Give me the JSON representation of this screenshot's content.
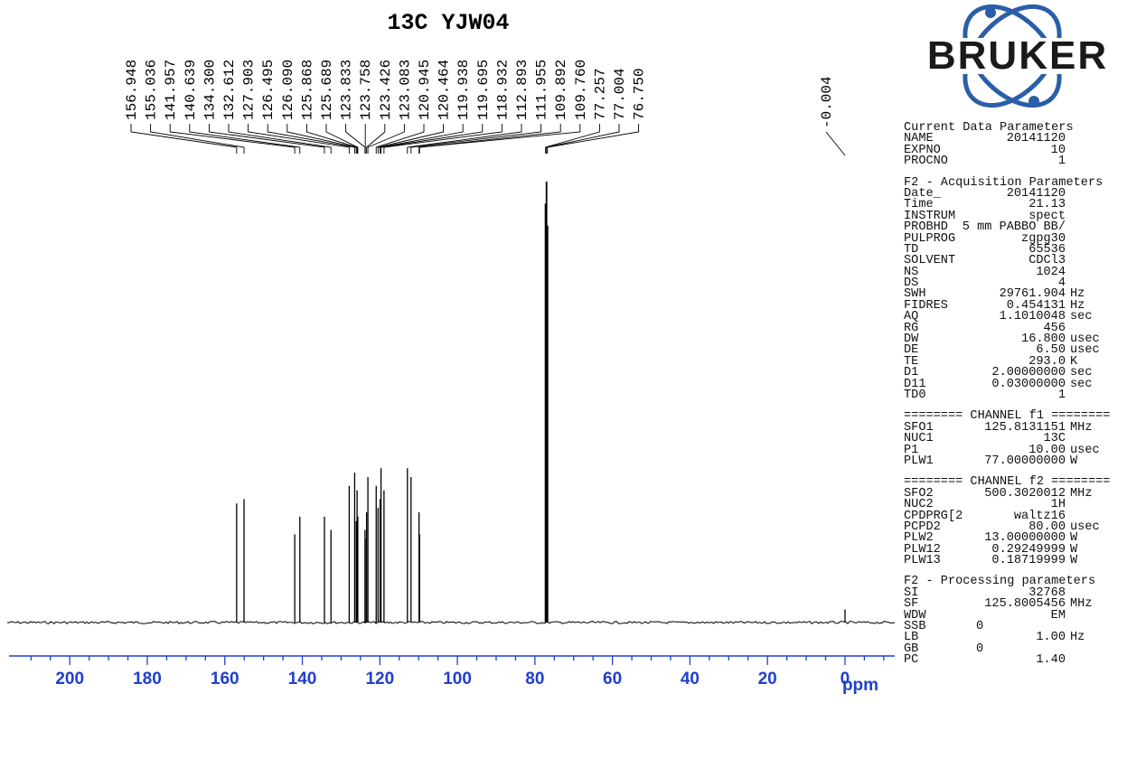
{
  "chart_data": {
    "type": "line",
    "title": "13C YJW04",
    "xlabel": "ppm",
    "xlim": [
      218,
      -14
    ],
    "xticks": [
      200,
      180,
      160,
      140,
      120,
      100,
      80,
      60,
      40,
      20,
      0
    ],
    "peak_labels": [
      "156.948",
      "155.036",
      "141.957",
      "140.639",
      "134.300",
      "132.612",
      "127.903",
      "126.495",
      "126.090",
      "125.868",
      "125.689",
      "123.833",
      "123.758",
      "123.426",
      "123.083",
      "120.945",
      "120.464",
      "119.938",
      "119.695",
      "118.932",
      "112.893",
      "111.955",
      "109.892",
      "109.760",
      "77.257",
      "77.004",
      "76.750",
      "-0.004"
    ],
    "series": [
      {
        "x": [
          156.948,
          155.036,
          141.957,
          140.639,
          134.3,
          132.612,
          127.903,
          126.495,
          126.09,
          125.868,
          125.689,
          123.833,
          123.758,
          123.426,
          123.083,
          120.945,
          120.464,
          119.938,
          119.695,
          118.932,
          112.893,
          111.955,
          109.892,
          109.76,
          77.257,
          77.004,
          76.75,
          -0.004
        ],
        "y": [
          0.27,
          0.28,
          0.2,
          0.24,
          0.24,
          0.21,
          0.31,
          0.34,
          0.23,
          0.3,
          0.24,
          0.21,
          0.19,
          0.25,
          0.33,
          0.31,
          0.26,
          0.28,
          0.35,
          0.3,
          0.35,
          0.33,
          0.25,
          0.2,
          0.95,
          1.0,
          0.9,
          0.03
        ]
      }
    ]
  },
  "logo": {
    "text": "BRUKER",
    "ring_color": "#2a5ea8",
    "dot_color": "#2a5ea8"
  },
  "axis_color": "#1f3fd0",
  "params": [
    {
      "header": "Current Data Parameters",
      "rows": [
        {
          "k": "NAME",
          "v": "20141120",
          "u": ""
        },
        {
          "k": "EXPNO",
          "v": "10",
          "u": ""
        },
        {
          "k": "PROCNO",
          "v": "1",
          "u": ""
        }
      ]
    },
    {
      "header": "F2 - Acquisition Parameters",
      "rows": [
        {
          "k": "Date_",
          "v": "20141120",
          "u": ""
        },
        {
          "k": "Time",
          "v": "21.13",
          "u": ""
        },
        {
          "k": "INSTRUM",
          "v": "spect",
          "u": ""
        },
        {
          "k": "PROBHD",
          "v": "5 mm PABBO BB/",
          "u": ""
        },
        {
          "k": "PULPROG",
          "v": "zgpg30",
          "u": ""
        },
        {
          "k": "TD",
          "v": "65536",
          "u": ""
        },
        {
          "k": "SOLVENT",
          "v": "CDCl3",
          "u": ""
        },
        {
          "k": "NS",
          "v": "1024",
          "u": ""
        },
        {
          "k": "DS",
          "v": "4",
          "u": ""
        },
        {
          "k": "SWH",
          "v": "29761.904",
          "u": "Hz"
        },
        {
          "k": "FIDRES",
          "v": "0.454131",
          "u": "Hz"
        },
        {
          "k": "AQ",
          "v": "1.1010048",
          "u": "sec"
        },
        {
          "k": "RG",
          "v": "456",
          "u": ""
        },
        {
          "k": "DW",
          "v": "16.800",
          "u": "usec"
        },
        {
          "k": "DE",
          "v": "6.50",
          "u": "usec"
        },
        {
          "k": "TE",
          "v": "293.0",
          "u": "K"
        },
        {
          "k": "D1",
          "v": "2.00000000",
          "u": "sec"
        },
        {
          "k": "D11",
          "v": "0.03000000",
          "u": "sec"
        },
        {
          "k": "TD0",
          "v": "1",
          "u": ""
        }
      ]
    },
    {
      "header": "======== CHANNEL f1 ========",
      "rows": [
        {
          "k": "SFO1",
          "v": "125.8131151",
          "u": "MHz"
        },
        {
          "k": "NUC1",
          "v": "13C",
          "u": ""
        },
        {
          "k": "P1",
          "v": "10.00",
          "u": "usec"
        },
        {
          "k": "PLW1",
          "v": "77.00000000",
          "u": "W"
        }
      ]
    },
    {
      "header": "======== CHANNEL f2 ========",
      "rows": [
        {
          "k": "SFO2",
          "v": "500.3020012",
          "u": "MHz"
        },
        {
          "k": "NUC2",
          "v": "1H",
          "u": ""
        },
        {
          "k": "CPDPRG[2",
          "v": "waltz16",
          "u": ""
        },
        {
          "k": "PCPD2",
          "v": "80.00",
          "u": "usec"
        },
        {
          "k": "PLW2",
          "v": "13.00000000",
          "u": "W"
        },
        {
          "k": "PLW12",
          "v": "0.29249999",
          "u": "W"
        },
        {
          "k": "PLW13",
          "v": "0.18719999",
          "u": "W"
        }
      ]
    },
    {
      "header": "F2 - Processing parameters",
      "rows": [
        {
          "k": "SI",
          "v": "32768",
          "u": ""
        },
        {
          "k": "SF",
          "v": "125.8005456",
          "u": "MHz"
        },
        {
          "k": "WDW",
          "v": "EM",
          "u": ""
        },
        {
          "k": "SSB",
          "v": "0",
          "u": "",
          "mid": true
        },
        {
          "k": "LB",
          "v": "1.00",
          "u": "Hz"
        },
        {
          "k": "GB",
          "v": "0",
          "u": "",
          "mid": true
        },
        {
          "k": "PC",
          "v": "1.40",
          "u": ""
        }
      ]
    }
  ]
}
